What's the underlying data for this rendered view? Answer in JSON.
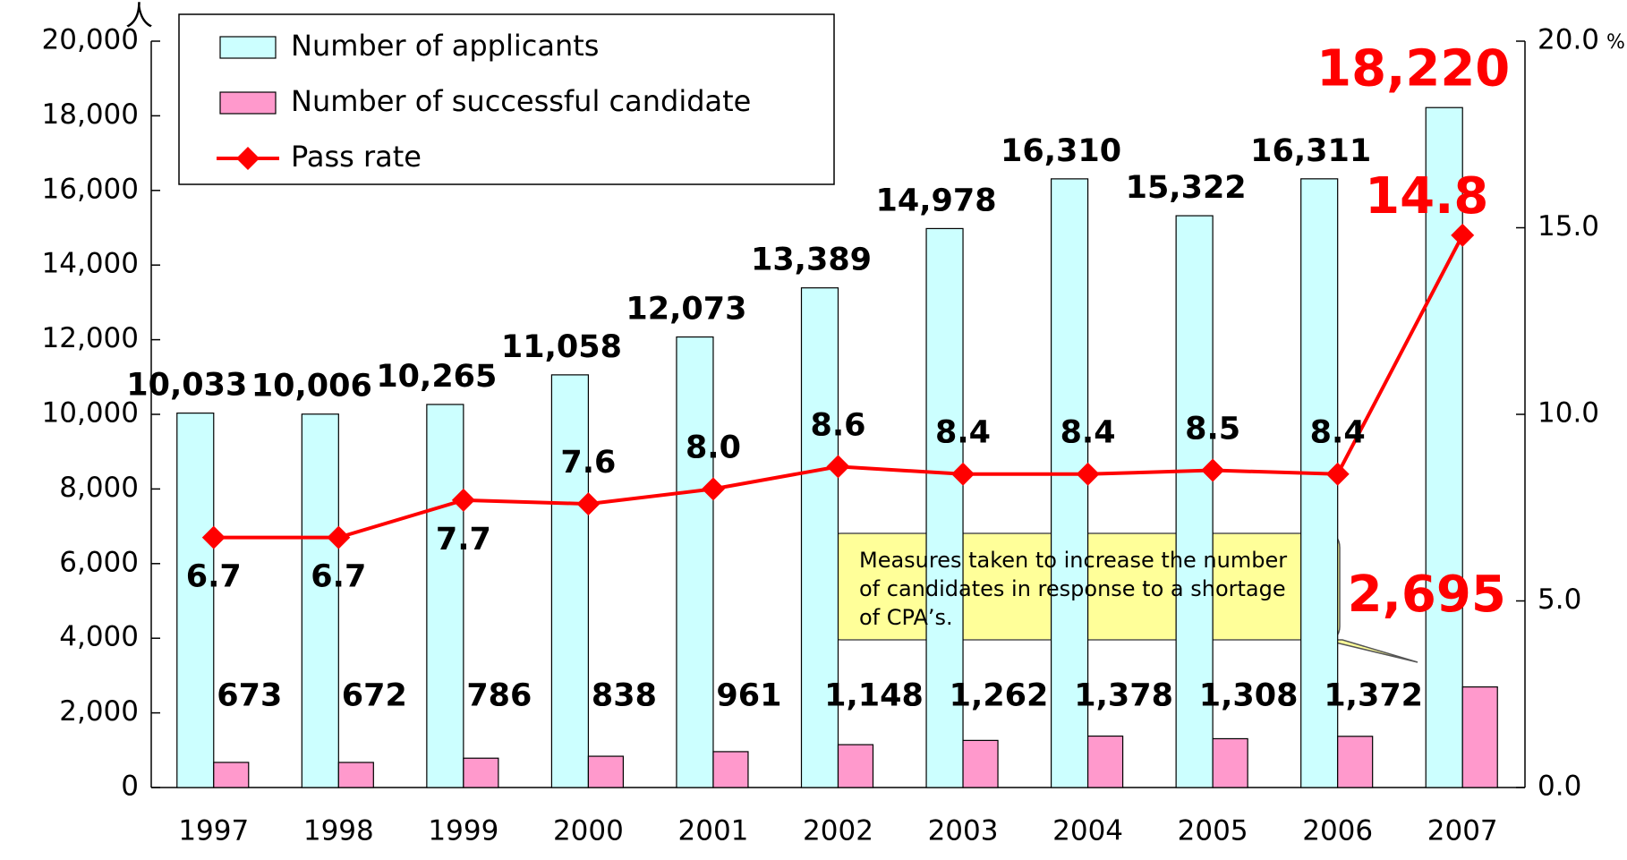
{
  "chart_data": {
    "type": "bar_line",
    "y_unit": "人",
    "y2_unit": "%",
    "categories": [
      "1997",
      "1998",
      "1999",
      "2000",
      "2001",
      "2002",
      "2003",
      "2004",
      "2005",
      "2006",
      "2007"
    ],
    "series": [
      {
        "name": "Number of applicants",
        "color": "#ccffff",
        "values": [
          10033,
          10006,
          10265,
          11058,
          12073,
          13389,
          14978,
          16310,
          15322,
          16311,
          18220
        ],
        "value_labels": [
          "10,033",
          "10,006",
          "10,265",
          "11,058",
          "12,073",
          "13,389",
          "14,978",
          "16,310",
          "15,322",
          "16,311",
          "18,220"
        ]
      },
      {
        "name": "Number of successful candidate",
        "color": "#ff99cc",
        "values": [
          673,
          672,
          786,
          838,
          961,
          1148,
          1262,
          1378,
          1308,
          1372,
          2695
        ],
        "value_labels": [
          "673",
          "672",
          "786",
          "838",
          "961",
          "1,148",
          "1,262",
          "1,378",
          "1,308",
          "1,372",
          "2,695"
        ]
      },
      {
        "name": "Pass rate",
        "color": "#ff0000",
        "axis": "y2",
        "values": [
          6.7,
          6.7,
          7.7,
          7.6,
          8.0,
          8.6,
          8.4,
          8.4,
          8.5,
          8.4,
          14.8
        ],
        "value_labels": [
          "6.7",
          "6.7",
          "7.7",
          "7.6",
          "8.0",
          "8.6",
          "8.4",
          "8.4",
          "8.5",
          "8.4",
          "14.8"
        ]
      }
    ],
    "ylim": [
      0,
      20000
    ],
    "yticks": [
      0,
      {
        "value": 2000,
        "label": "2,000"
      },
      {
        "value": 4000,
        "label": "4,000"
      },
      {
        "value": 6000,
        "label": "6,000"
      },
      {
        "value": 8000,
        "label": "8,000"
      },
      {
        "value": 10000,
        "label": "10,000"
      },
      {
        "value": 12000,
        "label": "12,000"
      },
      {
        "value": 14000,
        "label": "14,000"
      },
      {
        "value": 16000,
        "label": "16,000"
      },
      {
        "value": 18000,
        "label": "18,000"
      },
      {
        "value": 20000,
        "label": "20,000"
      }
    ],
    "y2lim": [
      0,
      20
    ],
    "y2ticks": [
      {
        "value": 0,
        "label": "0.0"
      },
      {
        "value": 5,
        "label": "5.0"
      },
      {
        "value": 10,
        "label": "10.0"
      },
      {
        "value": 15,
        "label": "15.0"
      },
      {
        "value": 20,
        "label": "20.0"
      }
    ],
    "annotation": "Measures taken to increase the number of candidates in response to a shortage of CPA’s."
  }
}
